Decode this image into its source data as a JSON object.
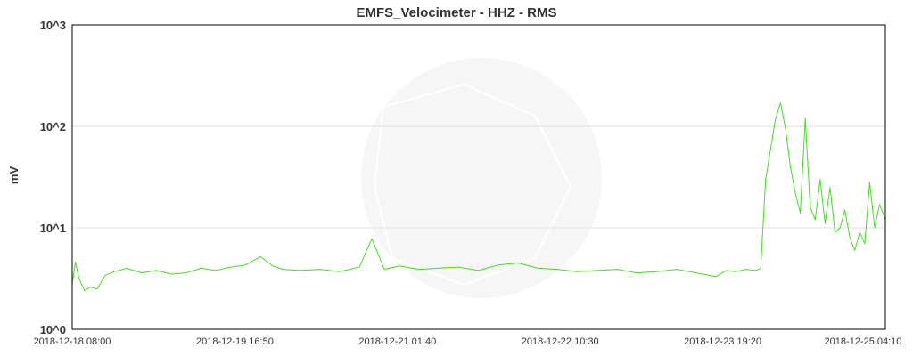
{
  "chart_data": {
    "type": "line",
    "title": "EMFS_Velocimeter - HHZ - RMS",
    "xlabel": "",
    "ylabel": "mV",
    "y_scale": "log",
    "ylim": [
      1,
      1000
    ],
    "y_ticks": [
      {
        "value": 1,
        "label": "10^0"
      },
      {
        "value": 10,
        "label": "10^1"
      },
      {
        "value": 100,
        "label": "10^2"
      },
      {
        "value": 1000,
        "label": "10^3"
      }
    ],
    "xlim": [
      "2018-12-18 08:00",
      "2018-12-25 04:10"
    ],
    "x_ticks": [
      "2018-12-18 08:00",
      "2018-12-19 16:50",
      "2018-12-21 01:40",
      "2018-12-22 10:30",
      "2018-12-23 19:20",
      "2018-12-25 04:10"
    ],
    "grid": "horizontal",
    "line_color": "#44dd22",
    "series": [
      {
        "name": "",
        "x": [
          "2018-12-18 08:00",
          "2018-12-18 08:40",
          "2018-12-18 09:20",
          "2018-12-18 10:30",
          "2018-12-18 11:40",
          "2018-12-18 13:00",
          "2018-12-18 14:40",
          "2018-12-18 16:30",
          "2018-12-18 19:00",
          "2018-12-18 22:00",
          "2018-12-19 01:00",
          "2018-12-19 04:00",
          "2018-12-19 07:00",
          "2018-12-19 10:00",
          "2018-12-19 13:00",
          "2018-12-19 16:00",
          "2018-12-19 19:00",
          "2018-12-19 22:00",
          "2018-12-20 00:30",
          "2018-12-20 02:30",
          "2018-12-20 06:00",
          "2018-12-20 10:00",
          "2018-12-20 14:00",
          "2018-12-20 18:00",
          "2018-12-20 20:30",
          "2018-12-20 23:00",
          "2018-12-21 02:00",
          "2018-12-21 06:00",
          "2018-12-21 10:00",
          "2018-12-21 14:00",
          "2018-12-21 18:00",
          "2018-12-21 22:00",
          "2018-12-22 02:00",
          "2018-12-22 06:00",
          "2018-12-22 10:00",
          "2018-12-22 14:00",
          "2018-12-22 18:00",
          "2018-12-22 22:00",
          "2018-12-23 02:00",
          "2018-12-23 06:00",
          "2018-12-23 10:00",
          "2018-12-23 14:00",
          "2018-12-23 18:00",
          "2018-12-23 20:00",
          "2018-12-23 22:00",
          "2018-12-24 00:00",
          "2018-12-24 02:00",
          "2018-12-24 03:00",
          "2018-12-24 04:00",
          "2018-12-24 05:00",
          "2018-12-24 06:00",
          "2018-12-24 07:00",
          "2018-12-24 08:00",
          "2018-12-24 09:00",
          "2018-12-24 10:00",
          "2018-12-24 11:00",
          "2018-12-24 12:00",
          "2018-12-24 13:00",
          "2018-12-24 14:00",
          "2018-12-24 15:00",
          "2018-12-24 16:00",
          "2018-12-24 17:00",
          "2018-12-24 18:00",
          "2018-12-24 19:00",
          "2018-12-24 20:00",
          "2018-12-24 21:00",
          "2018-12-24 22:00",
          "2018-12-24 23:00",
          "2018-12-25 00:00",
          "2018-12-25 01:00",
          "2018-12-25 02:00",
          "2018-12-25 03:00",
          "2018-12-25 04:10"
        ],
        "values": [
          2.8,
          4.6,
          3.2,
          2.4,
          2.6,
          2.5,
          3.4,
          3.7,
          4.0,
          3.6,
          3.8,
          3.5,
          3.6,
          4.0,
          3.8,
          4.1,
          4.3,
          5.2,
          4.2,
          3.9,
          3.8,
          3.9,
          3.7,
          4.1,
          7.8,
          3.9,
          4.2,
          3.9,
          4.0,
          4.1,
          3.8,
          4.3,
          4.5,
          4.0,
          3.9,
          3.7,
          3.8,
          3.9,
          3.6,
          3.7,
          3.9,
          3.6,
          3.3,
          3.8,
          3.7,
          3.9,
          3.8,
          4.0,
          30.0,
          60.0,
          120.0,
          170.0,
          95.0,
          40.0,
          22.0,
          14.0,
          120.0,
          16.0,
          12.0,
          30.0,
          11.0,
          25.0,
          9.0,
          10.0,
          15.0,
          8.0,
          6.0,
          9.0,
          7.0,
          28.0,
          10.0,
          17.0,
          12.0
        ]
      }
    ]
  }
}
